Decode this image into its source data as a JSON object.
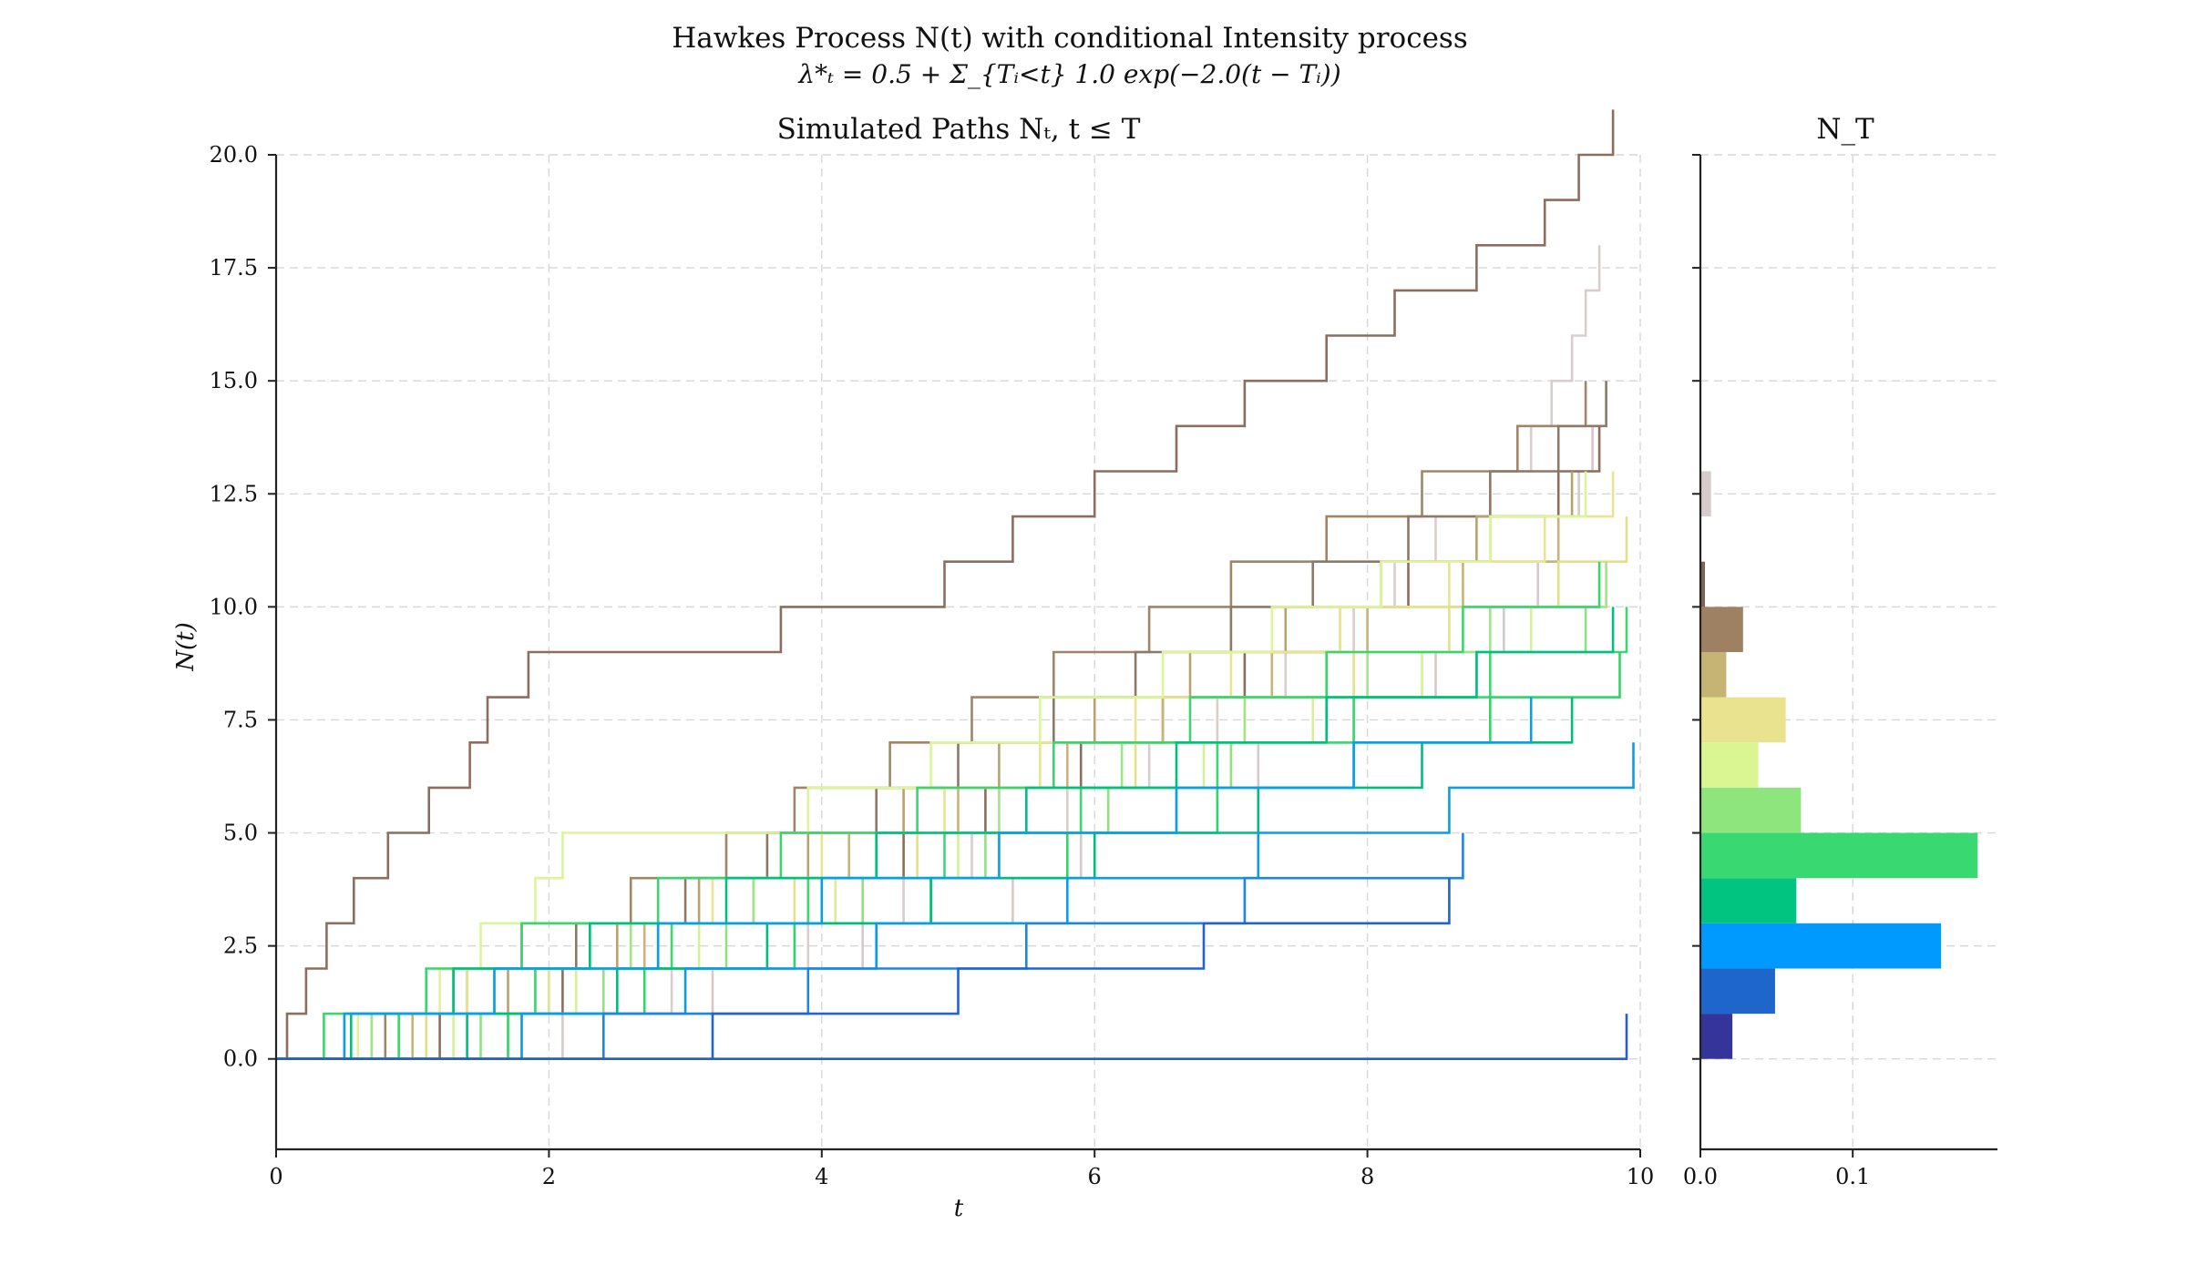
{
  "figure": {
    "suptitle": "Hawkes Process N(t) with conditional Intensity process",
    "formula": "λ*ₜ = 0.5 + Σ_{Tᵢ<t} 1.0 exp(−2.0(t − Tᵢ))"
  },
  "chart_data": [
    {
      "type": "line",
      "title": "Simulated Paths Nₜ, t ≤ T",
      "xlabel": "t",
      "ylabel": "N(t)",
      "xlim": [
        0,
        10
      ],
      "ylim": [
        -2,
        20
      ],
      "xticks": [
        "0",
        "2",
        "4",
        "6",
        "8",
        "10"
      ],
      "yticks": [
        "0.0",
        "2.5",
        "5.0",
        "7.5",
        "10.0",
        "12.5",
        "15.0",
        "17.5",
        "20.0"
      ],
      "grid": true,
      "step": true,
      "series": [
        {
          "color": "#d9cdcd",
          "jumps": [
            1.8,
            2.9,
            3.9,
            4.6,
            5.1,
            5.8,
            6.4,
            6.9,
            7.4,
            7.9,
            8.2,
            8.5,
            8.9,
            9.2,
            9.35,
            9.5,
            9.6,
            9.7
          ]
        },
        {
          "color": "#d6c9c9",
          "jumps": [
            2.1,
            3.2,
            4.3,
            5.4,
            5.9,
            6.6,
            7.2,
            7.9,
            8.5,
            9.0,
            9.25,
            9.4,
            9.55,
            9.65
          ]
        },
        {
          "color": "#8c6e5f",
          "jumps": [
            0.08,
            0.22,
            0.37,
            0.57,
            0.82,
            1.12,
            1.42,
            1.55,
            1.85,
            3.7,
            4.9,
            5.4,
            6.0,
            6.6,
            7.1,
            7.7,
            8.2,
            8.8,
            9.3,
            9.55,
            9.8
          ]
        },
        {
          "color": "#8c6e5f",
          "jumps": [
            1.2,
            2.1,
            2.8,
            3.9,
            4.6,
            5.2,
            5.9,
            6.5,
            7.1,
            7.8,
            8.3,
            8.9,
            9.4,
            9.7
          ]
        },
        {
          "color": "#a08566",
          "jumps": [
            0.8,
            1.3,
            1.8,
            2.6,
            3.3,
            3.8,
            4.5,
            5.1,
            5.7,
            6.4,
            7.0,
            7.7,
            8.4,
            9.1,
            9.6
          ]
        },
        {
          "color": "#8e7866",
          "jumps": [
            0.7,
            1.4,
            2.2,
            3.0,
            3.6,
            4.4,
            5.0,
            5.7,
            6.3,
            7.0,
            7.6,
            8.3,
            8.9,
            9.4,
            9.75
          ]
        },
        {
          "color": "#b8a36e",
          "jumps": [
            0.9,
            1.7,
            2.5,
            3.1,
            3.9,
            4.6,
            5.3,
            6.0,
            6.7,
            7.4,
            8.1,
            8.8,
            9.5
          ]
        },
        {
          "color": "#c7b476",
          "jumps": [
            1.0,
            1.9,
            2.7,
            3.5,
            4.2,
            5.0,
            5.8,
            6.5,
            7.3,
            8.0,
            8.7,
            9.4
          ]
        },
        {
          "color": "#e8e490",
          "jumps": [
            0.5,
            1.4,
            2.3,
            3.2,
            4.0,
            4.9,
            5.6,
            6.3,
            7.0,
            7.8,
            8.6,
            9.3,
            9.8
          ]
        },
        {
          "color": "#e3e08a",
          "jumps": [
            1.1,
            2.0,
            2.9,
            3.8,
            4.7,
            5.5,
            6.3,
            7.1,
            7.9,
            8.6,
            9.4,
            9.9
          ]
        },
        {
          "color": "#dcf59a",
          "jumps": [
            0.6,
            1.2,
            1.5,
            1.9,
            2.1,
            3.9,
            4.8,
            5.6,
            6.5,
            7.3,
            8.1,
            8.9,
            9.6
          ]
        },
        {
          "color": "#d4f295",
          "jumps": [
            1.3,
            2.2,
            3.1,
            4.1,
            5.0,
            5.9,
            6.8,
            7.6,
            8.4,
            9.2,
            9.7
          ]
        },
        {
          "color": "#9fe58a",
          "jumps": [
            0.7,
            1.6,
            2.6,
            3.5,
            4.4,
            5.3,
            6.2,
            7.1,
            8.0,
            8.9,
            9.75
          ]
        },
        {
          "color": "#8ee37f",
          "jumps": [
            1.5,
            2.4,
            3.3,
            4.3,
            5.2,
            6.1,
            7.0,
            7.9,
            8.8,
            9.6
          ]
        },
        {
          "color": "#3dd46e",
          "jumps": [
            0.35,
            1.1,
            1.8,
            2.8,
            3.7,
            4.7,
            5.7,
            6.7,
            7.7,
            8.7,
            9.7
          ]
        },
        {
          "color": "#3fd673",
          "jumps": [
            0.9,
            1.9,
            2.9,
            3.9,
            4.9,
            5.9,
            6.9,
            7.9,
            8.9,
            9.9
          ]
        },
        {
          "color": "#33d26c",
          "jumps": [
            1.7,
            2.7,
            3.8,
            4.8,
            5.8,
            6.9,
            7.9,
            8.9,
            9.85
          ]
        },
        {
          "color": "#00c080",
          "jumps": [
            0.55,
            1.3,
            2.3,
            3.3,
            4.4,
            5.5,
            6.6,
            7.7,
            8.8,
            9.8
          ]
        },
        {
          "color": "#00bd7d",
          "jumps": [
            1.4,
            2.5,
            3.6,
            4.8,
            6.0,
            7.2,
            8.4,
            9.5
          ]
        },
        {
          "color": "#079fe8",
          "jumps": [
            0.5,
            1.6,
            2.8,
            4.0,
            5.3,
            6.6,
            7.9,
            9.2
          ]
        },
        {
          "color": "#0a9cec",
          "jumps": [
            1.8,
            3.0,
            4.4,
            5.8,
            7.2,
            8.6,
            9.95
          ]
        },
        {
          "color": "#1e86e0",
          "jumps": [
            2.4,
            3.9,
            5.5,
            7.1,
            8.7
          ]
        },
        {
          "color": "#2064cc",
          "jumps": [
            3.2,
            5.0,
            6.8,
            8.6
          ]
        },
        {
          "color": "#2a5ec4",
          "jumps": [
            9.9
          ]
        }
      ]
    },
    {
      "type": "bar",
      "orientation": "horizontal",
      "title": "N_T",
      "xlim": [
        0,
        0.195
      ],
      "xticks": [
        "0.0",
        "0.1"
      ],
      "grid": true,
      "bins": [
        {
          "value": -0.5,
          "density": 0.021,
          "color": "#34349a"
        },
        {
          "value": 0.5,
          "density": 0.049,
          "color": "#1e65cc"
        },
        {
          "value": 1.5,
          "density": 0.158,
          "color": "#009aff"
        },
        {
          "value": 2.5,
          "density": 0.063,
          "color": "#00c480"
        },
        {
          "value": 3.5,
          "density": 0.182,
          "color": "#3ad870"
        },
        {
          "value": 4.5,
          "density": 0.066,
          "color": "#8ee57e"
        },
        {
          "value": 5.5,
          "density": 0.038,
          "color": "#d9f693"
        },
        {
          "value": 6.5,
          "density": 0.056,
          "color": "#e9e28e"
        },
        {
          "value": 7.5,
          "density": 0.017,
          "color": "#c6b474"
        },
        {
          "value": 8.5,
          "density": 0.028,
          "color": "#9e8163"
        },
        {
          "value": 9.5,
          "density": 0.003,
          "color": "#7e6451"
        },
        {
          "value": 11.5,
          "density": 0.007,
          "color": "#d8cbcb"
        }
      ]
    }
  ]
}
